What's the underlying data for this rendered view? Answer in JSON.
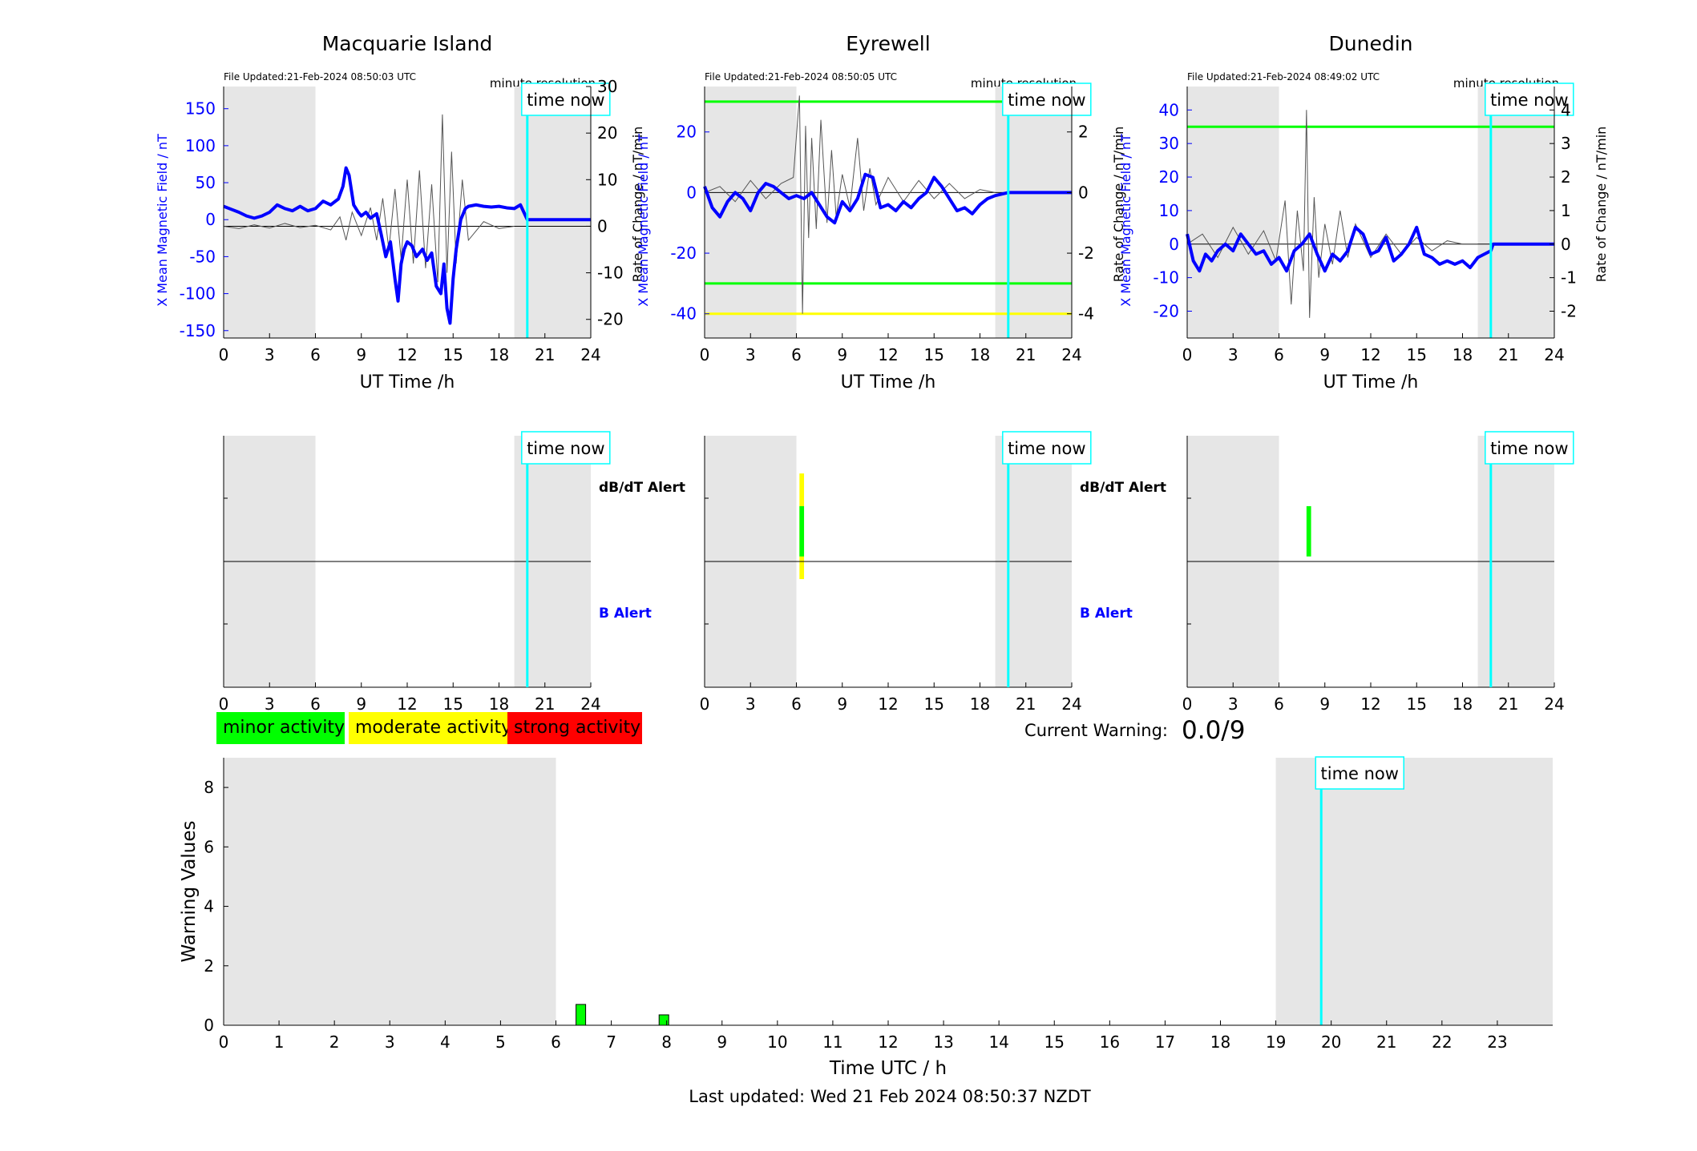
{
  "panels": [
    {
      "station": "Macquarie Island",
      "file_updated": "File Updated:21-Feb-2024 08:50:03 UTC",
      "resolution": "minute resolution",
      "time_now_label": "time now",
      "left_ylabel": "X Mean Magnetic Field / nT",
      "right_ylabel": "Rate of Change / nT/min",
      "xlabel": "UT Time /h",
      "alert_db_label": "dB/dT Alert",
      "alert_b_label": "B Alert"
    },
    {
      "station": "Eyrewell",
      "file_updated": "File Updated:21-Feb-2024 08:50:05 UTC",
      "resolution": "minute resolution",
      "time_now_label": "time now",
      "left_ylabel": "X Mean Magnetic Field / nT",
      "right_ylabel": "Rate of Change / nT/min",
      "xlabel": "UT Time /h",
      "alert_db_label": "dB/dT Alert",
      "alert_b_label": "B Alert"
    },
    {
      "station": "Dunedin",
      "file_updated": "File Updated:21-Feb-2024 08:49:02 UTC",
      "resolution": "minute resolution",
      "time_now_label": "time now",
      "left_ylabel": "X Mean Magnetic Field / nT",
      "right_ylabel": "Rate of Change / nT/min",
      "xlabel": "UT Time /h",
      "alert_db_label": "",
      "alert_b_label": ""
    }
  ],
  "legend": {
    "minor": "minor activity",
    "moderate": "moderate activity",
    "strong": "strong activity",
    "minor_color": "#00ff00",
    "moderate_color": "#ffff00",
    "strong_color": "#ff0000"
  },
  "current_warning": {
    "label": "Current Warning:",
    "value": "0.0/9"
  },
  "warning_chart": {
    "ylabel": "Warning Values",
    "xlabel": "Time UTC / h",
    "time_now_label": "time now"
  },
  "footer": "Last updated: Wed 21 Feb 2024 08:50:37 NZDT",
  "chart_data": [
    {
      "type": "line",
      "station": "Macquarie Island",
      "x_range": [
        0,
        24
      ],
      "x_ticks": [
        0,
        3,
        6,
        9,
        12,
        15,
        18,
        21,
        24
      ],
      "y_left_range": [
        -160,
        180
      ],
      "y_left_ticks": [
        -150,
        -100,
        -50,
        0,
        50,
        100,
        150
      ],
      "y_right_range": [
        -24,
        30
      ],
      "y_right_ticks": [
        -20,
        -10,
        0,
        10,
        20,
        30
      ],
      "shaded_x": [
        [
          0,
          6
        ],
        [
          19,
          24
        ]
      ],
      "time_now": 19.85,
      "thresholds": [],
      "field_series": {
        "x": [
          0,
          0.5,
          1,
          1.5,
          2,
          2.5,
          3,
          3.5,
          4,
          4.5,
          5,
          5.5,
          6,
          6.5,
          7,
          7.5,
          7.8,
          8,
          8.2,
          8.5,
          8.8,
          9,
          9.3,
          9.6,
          10,
          10.3,
          10.6,
          10.9,
          11.2,
          11.4,
          11.6,
          11.8,
          12,
          12.3,
          12.6,
          13,
          13.3,
          13.6,
          13.9,
          14.2,
          14.4,
          14.6,
          14.8,
          15,
          15.2,
          15.5,
          15.8,
          16,
          16.5,
          17,
          17.5,
          18,
          18.5,
          19,
          19.4,
          19.85,
          20,
          21,
          22,
          23,
          24
        ],
        "y": [
          18,
          14,
          10,
          5,
          2,
          5,
          10,
          20,
          15,
          12,
          18,
          12,
          15,
          25,
          20,
          28,
          45,
          70,
          60,
          20,
          10,
          5,
          10,
          2,
          8,
          -20,
          -50,
          -30,
          -80,
          -110,
          -60,
          -40,
          -30,
          -35,
          -50,
          -40,
          -55,
          -45,
          -90,
          -100,
          -60,
          -120,
          -140,
          -80,
          -40,
          0,
          15,
          18,
          20,
          18,
          17,
          18,
          16,
          15,
          20,
          0,
          0,
          0,
          0,
          0,
          0
        ]
      },
      "rate_series": {
        "x": [
          0,
          1,
          2,
          3,
          4,
          5,
          6,
          7,
          7.6,
          8,
          8.4,
          9,
          9.6,
          10,
          10.4,
          10.8,
          11.2,
          11.6,
          12,
          12.4,
          12.8,
          13.2,
          13.6,
          14,
          14.3,
          14.6,
          14.9,
          15.2,
          15.6,
          16,
          17,
          18,
          19
        ],
        "y": [
          0,
          -0.5,
          0.3,
          -0.4,
          0.6,
          -0.3,
          0.2,
          -0.8,
          2,
          -3,
          3,
          -2,
          4,
          -3,
          6,
          -5,
          8,
          -7,
          10,
          -8,
          12,
          -9,
          9,
          -12,
          24,
          -10,
          16,
          -8,
          10,
          -3,
          1,
          -0.5,
          0
        ]
      }
    },
    {
      "type": "line",
      "station": "Eyrewell",
      "x_range": [
        0,
        24
      ],
      "x_ticks": [
        0,
        3,
        6,
        9,
        12,
        15,
        18,
        21,
        24
      ],
      "y_left_range": [
        -48,
        35
      ],
      "y_left_ticks": [
        -40,
        -20,
        0,
        20
      ],
      "y_right_range": [
        -4.8,
        3.5
      ],
      "y_right_ticks": [
        -4,
        -2,
        0,
        2
      ],
      "shaded_x": [
        [
          0,
          6
        ],
        [
          19,
          24
        ]
      ],
      "time_now": 19.85,
      "thresholds": [
        {
          "value": 30,
          "color": "#00ff00"
        },
        {
          "value": -30,
          "color": "#00ff00"
        },
        {
          "value": -40,
          "color": "#ffff00"
        }
      ],
      "field_series": {
        "x": [
          0,
          0.5,
          1,
          1.5,
          2,
          2.5,
          3,
          3.5,
          4,
          4.5,
          5,
          5.5,
          6,
          6.5,
          7,
          7.5,
          8,
          8.5,
          9,
          9.5,
          10,
          10.5,
          11,
          11.5,
          12,
          12.5,
          13,
          13.5,
          14,
          14.5,
          15,
          15.5,
          16,
          16.5,
          17,
          17.5,
          18,
          18.5,
          19,
          19.85,
          20,
          21,
          22,
          23,
          24
        ],
        "y": [
          2,
          -5,
          -8,
          -3,
          0,
          -2,
          -6,
          0,
          3,
          2,
          0,
          -2,
          -1,
          -2,
          0,
          -4,
          -8,
          -10,
          -3,
          -6,
          -2,
          6,
          5,
          -5,
          -4,
          -6,
          -3,
          -5,
          -2,
          0,
          5,
          2,
          -2,
          -6,
          -5,
          -7,
          -4,
          -2,
          -1,
          0,
          0,
          0,
          0,
          0,
          0
        ]
      },
      "rate_series": {
        "x": [
          0,
          1,
          2,
          3,
          4,
          5,
          5.8,
          6.2,
          6.4,
          6.6,
          6.8,
          7,
          7.3,
          7.6,
          8,
          8.3,
          8.6,
          9,
          9.5,
          10,
          10.4,
          10.8,
          11.2,
          12,
          13,
          14,
          15,
          16,
          17,
          18,
          19
        ],
        "y": [
          0,
          0.2,
          -0.3,
          0.4,
          -0.2,
          0.3,
          0.5,
          3.2,
          -4.0,
          2.2,
          -1.5,
          1.8,
          -1.2,
          2.4,
          -1.0,
          1.4,
          -0.8,
          0.6,
          -0.5,
          1.8,
          -0.6,
          0.8,
          -0.4,
          0.5,
          -0.3,
          0.4,
          -0.2,
          0.3,
          -0.2,
          0.1,
          0
        ]
      }
    },
    {
      "type": "line",
      "station": "Dunedin",
      "x_range": [
        0,
        24
      ],
      "x_ticks": [
        0,
        3,
        6,
        9,
        12,
        15,
        18,
        21,
        24
      ],
      "y_left_range": [
        -28,
        47
      ],
      "y_left_ticks": [
        -20,
        -10,
        0,
        10,
        20,
        30,
        40
      ],
      "y_right_range": [
        -2.8,
        4.7
      ],
      "y_right_ticks": [
        -2,
        -1,
        0,
        1,
        2,
        3,
        4
      ],
      "shaded_x": [
        [
          0,
          6
        ],
        [
          19,
          24
        ]
      ],
      "time_now": 19.85,
      "thresholds": [
        {
          "value": 35,
          "color": "#00ff00"
        }
      ],
      "field_series": {
        "x": [
          0,
          0.4,
          0.8,
          1.2,
          1.6,
          2,
          2.5,
          3,
          3.5,
          4,
          4.5,
          5,
          5.5,
          6,
          6.5,
          7,
          7.5,
          8,
          8.5,
          9,
          9.5,
          10,
          10.5,
          11,
          11.5,
          12,
          12.5,
          13,
          13.5,
          14,
          14.5,
          15,
          15.5,
          16,
          16.5,
          17,
          17.5,
          18,
          18.5,
          19,
          19.85,
          20,
          21,
          22,
          23,
          24
        ],
        "y": [
          3,
          -5,
          -8,
          -3,
          -5,
          -2,
          0,
          -2,
          3,
          0,
          -3,
          -2,
          -6,
          -4,
          -8,
          -2,
          0,
          3,
          -3,
          -8,
          -3,
          -5,
          -2,
          5,
          3,
          -3,
          -2,
          2,
          -5,
          -3,
          0,
          5,
          -3,
          -4,
          -6,
          -5,
          -6,
          -5,
          -7,
          -4,
          -2,
          0,
          0,
          0,
          0,
          0
        ]
      },
      "rate_series": {
        "x": [
          0,
          1,
          2,
          3,
          4,
          5,
          5.8,
          6.4,
          6.8,
          7.2,
          7.6,
          7.8,
          8,
          8.3,
          8.6,
          9,
          9.5,
          10,
          10.5,
          11,
          12,
          13,
          14,
          15,
          16,
          17,
          18,
          19
        ],
        "y": [
          0,
          0.3,
          -0.4,
          0.5,
          -0.3,
          0.4,
          -0.5,
          1.3,
          -1.8,
          1.0,
          -0.8,
          4.0,
          -2.2,
          1.4,
          -1.0,
          0.6,
          -0.6,
          1.0,
          -0.4,
          0.6,
          -0.4,
          0.3,
          -0.3,
          0.2,
          -0.2,
          0.1,
          0,
          0
        ]
      }
    },
    {
      "type": "heatmap",
      "station": "Macquarie Island",
      "x_range": [
        0,
        24
      ],
      "x_ticks": [
        0,
        3,
        6,
        9,
        12,
        15,
        18,
        21,
        24
      ],
      "shaded_x": [
        [
          0,
          6
        ],
        [
          19,
          24
        ]
      ],
      "time_now": 19.85,
      "db_alerts": [],
      "b_alerts": []
    },
    {
      "type": "heatmap",
      "station": "Eyrewell",
      "x_range": [
        0,
        24
      ],
      "x_ticks": [
        0,
        3,
        6,
        9,
        12,
        15,
        18,
        21,
        24
      ],
      "shaded_x": [
        [
          0,
          6
        ],
        [
          19,
          24
        ]
      ],
      "time_now": 19.85,
      "db_alerts": [
        {
          "x": 6.35,
          "level_low": 0.43,
          "level_high": 0.85,
          "color": "#ffff00",
          "width": 0.3
        },
        {
          "x": 6.35,
          "level_low": 0.52,
          "level_high": 0.72,
          "color": "#00ff00",
          "width": 0.3
        }
      ],
      "b_alerts": []
    },
    {
      "type": "heatmap",
      "station": "Dunedin",
      "x_range": [
        0,
        24
      ],
      "x_ticks": [
        0,
        3,
        6,
        9,
        12,
        15,
        18,
        21,
        24
      ],
      "shaded_x": [
        [
          0,
          6
        ],
        [
          19,
          24
        ]
      ],
      "time_now": 19.85,
      "db_alerts": [
        {
          "x": 7.95,
          "level_low": 0.52,
          "level_high": 0.72,
          "color": "#00ff00",
          "width": 0.3
        }
      ],
      "b_alerts": []
    },
    {
      "type": "bar",
      "x_range": [
        0,
        24
      ],
      "x_ticks": [
        0,
        1,
        2,
        3,
        4,
        5,
        6,
        7,
        8,
        9,
        10,
        11,
        12,
        13,
        14,
        15,
        16,
        17,
        18,
        19,
        20,
        21,
        22,
        23
      ],
      "ylim": [
        0,
        9
      ],
      "y_ticks": [
        0,
        2,
        4,
        6,
        8
      ],
      "shaded_x": [
        [
          0,
          6
        ],
        [
          19,
          24
        ]
      ],
      "time_now": 19.82,
      "bars": [
        {
          "x": 6.45,
          "value": 0.7,
          "color": "#00ff00"
        },
        {
          "x": 7.95,
          "value": 0.35,
          "color": "#00ff00"
        }
      ]
    }
  ]
}
